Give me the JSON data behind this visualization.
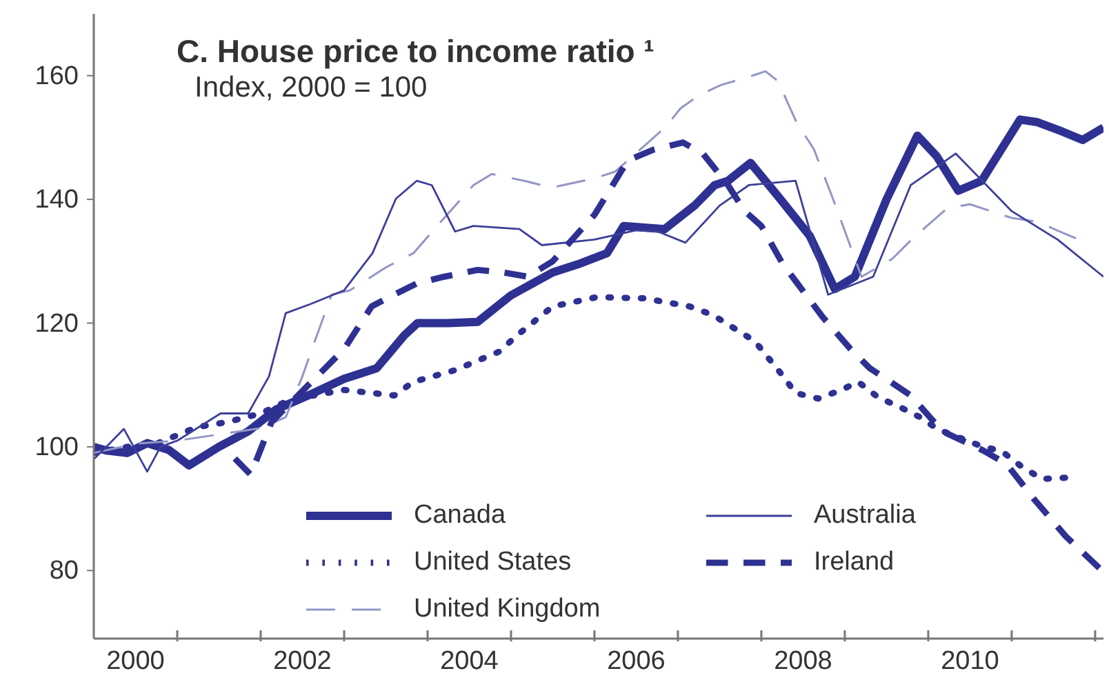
{
  "chart_data": {
    "type": "line",
    "title": "C. House price to income ratio ¹",
    "subtitle": "Index, 2000  = 100",
    "series": [
      {
        "name": "Canada",
        "color": "#2e3192",
        "line_style": "solid",
        "x": [
          2000.0,
          2000.15,
          2000.4,
          2000.64,
          2000.9,
          2001.14,
          2001.5,
          2001.85,
          2002.18,
          2002.6,
          2003.0,
          2003.39,
          2003.72,
          2003.88,
          2004.25,
          2004.6,
          2005.0,
          2005.5,
          2005.8,
          2006.15,
          2006.35,
          2006.84,
          2007.2,
          2007.44,
          2007.6,
          2007.87,
          2008.2,
          2008.58,
          2008.88,
          2009.12,
          2009.5,
          2009.87,
          2010.1,
          2010.36,
          2010.64,
          2011.1,
          2011.3,
          2011.6,
          2011.85,
          2012.1
        ],
        "values": [
          100,
          99.4,
          99,
          100.6,
          99.5,
          97,
          100,
          102.5,
          106,
          108.5,
          111,
          112.7,
          118,
          120,
          120,
          120.2,
          124.5,
          128.2,
          129.5,
          131.3,
          135.7,
          135.2,
          139,
          142.3,
          143,
          145.9,
          140.5,
          134.1,
          125.5,
          127.5,
          140,
          150.3,
          147,
          141.4,
          143,
          152.9,
          152.5,
          151,
          149.6,
          151.6
        ]
      },
      {
        "name": "United States",
        "color": "#2e3192",
        "line_style": "dotted",
        "x": [
          2000.0,
          2000.4,
          2000.75,
          2001.24,
          2001.6,
          2002.0,
          2002.35,
          2003.0,
          2003.6,
          2003.83,
          2004.33,
          2004.86,
          2005.07,
          2005.5,
          2006.03,
          2006.6,
          2007.14,
          2007.42,
          2007.92,
          2008.25,
          2008.41,
          2008.68,
          2008.96,
          2009.16,
          2009.4,
          2009.65,
          2009.9,
          2010.12,
          2010.6,
          2010.89,
          2011.1,
          2011.36,
          2011.64
        ],
        "values": [
          99,
          100,
          100.5,
          103.2,
          104,
          105.4,
          107.6,
          109.2,
          108.3,
          110.5,
          112.4,
          115.4,
          118,
          122.7,
          124.2,
          124,
          122.7,
          121.3,
          117.1,
          111.6,
          108.7,
          107.8,
          109.2,
          110.5,
          108,
          106.5,
          104.8,
          102.8,
          100.3,
          99.2,
          97,
          94.8,
          95
        ]
      },
      {
        "name": "United Kingdom",
        "color": "#9296c6",
        "line_style": "dashed",
        "x": [
          2000.0,
          2000.5,
          2001.0,
          2001.5,
          2002.0,
          2002.3,
          2002.5,
          2002.62,
          2002.85,
          2003.07,
          2003.5,
          2003.83,
          2004.2,
          2004.55,
          2004.77,
          2005.16,
          2005.49,
          2006.0,
          2006.25,
          2006.86,
          2007.03,
          2007.26,
          2007.52,
          2007.8,
          2008.05,
          2008.2,
          2008.42,
          2008.63,
          2008.9,
          2009.2,
          2009.57,
          2009.8,
          2010.23,
          2010.5,
          2011.0,
          2011.3,
          2011.77
        ],
        "values": [
          99,
          100.5,
          101,
          102,
          103,
          104.8,
          111.4,
          116,
          124.6,
          125.3,
          129,
          131.3,
          137,
          142.3,
          144.1,
          143,
          141.9,
          143.4,
          144.5,
          151.8,
          154.7,
          156.9,
          158.5,
          159.6,
          160.7,
          159.1,
          152.5,
          148.1,
          138.6,
          127.5,
          130.4,
          133.5,
          138.6,
          139.2,
          137,
          136.4,
          133.7
        ]
      },
      {
        "name": "Australia",
        "color": "#3d3f99",
        "line_style": "solid",
        "x": [
          2000.0,
          2000.15,
          2000.36,
          2000.64,
          2000.8,
          2001.0,
          2001.52,
          2001.85,
          2002.1,
          2002.3,
          2002.6,
          2003.0,
          2003.34,
          2003.62,
          2003.87,
          2004.05,
          2004.33,
          2004.55,
          2005.1,
          2005.37,
          2006.0,
          2006.5,
          2006.76,
          2007.09,
          2007.5,
          2007.85,
          2008.41,
          2008.8,
          2009.34,
          2009.79,
          2010.33,
          2011.0,
          2011.55,
          2012.1
        ],
        "values": [
          98,
          100,
          102.9,
          96,
          100,
          101,
          105.4,
          105.4,
          111.4,
          121.6,
          123.1,
          125.3,
          131.3,
          140.1,
          143,
          142.3,
          134.8,
          135.7,
          135.2,
          132.6,
          133.5,
          135,
          134.8,
          133,
          139,
          142.3,
          143,
          124.6,
          127.5,
          142.3,
          147.4,
          138.1,
          133.5,
          127.5
        ]
      },
      {
        "name": "Ireland",
        "color": "#2e3192",
        "line_style": "dashed",
        "x": [
          2001.69,
          2001.88,
          2002.13,
          2003.0,
          2003.33,
          2003.6,
          2003.87,
          2004.2,
          2004.6,
          2004.9,
          2005.2,
          2005.5,
          2006.0,
          2006.4,
          2006.7,
          2007.06,
          2007.3,
          2007.6,
          2007.8,
          2008.0,
          2008.25,
          2008.41,
          2008.74,
          2009.07,
          2009.3,
          2009.57,
          2009.79,
          2010.17,
          2010.66,
          2010.94,
          2011.27,
          2011.65,
          2012.05
        ],
        "values": [
          98.1,
          95.5,
          104,
          115.8,
          122.7,
          124.6,
          126.4,
          127.5,
          128.6,
          128.2,
          127.5,
          130,
          137.5,
          146.3,
          148,
          149.2,
          147.4,
          142.3,
          138.1,
          135.7,
          129.7,
          126.8,
          120.9,
          115.8,
          112.7,
          110.3,
          108.3,
          102.5,
          99.4,
          97.2,
          91.5,
          85.5,
          80.4
        ]
      }
    ],
    "xlim": [
      2000,
      2012.1
    ],
    "xticks": [
      {
        "value": 2000.5,
        "label": "2000"
      },
      {
        "value": 2001,
        "label": null
      },
      {
        "value": 2002,
        "label": null
      },
      {
        "value": 2002.5,
        "label": "2002"
      },
      {
        "value": 2003,
        "label": null
      },
      {
        "value": 2004,
        "label": null
      },
      {
        "value": 2004.5,
        "label": "2004"
      },
      {
        "value": 2005,
        "label": null
      },
      {
        "value": 2006,
        "label": null
      },
      {
        "value": 2006.5,
        "label": "2006"
      },
      {
        "value": 2007,
        "label": null
      },
      {
        "value": 2008,
        "label": null
      },
      {
        "value": 2008.5,
        "label": "2008"
      },
      {
        "value": 2009,
        "label": null
      },
      {
        "value": 2010,
        "label": null
      },
      {
        "value": 2010.5,
        "label": "2010"
      },
      {
        "value": 2011,
        "label": null
      },
      {
        "value": 2012,
        "label": null
      }
    ],
    "ylim": [
      69,
      170
    ],
    "yticks": [
      80,
      100,
      120,
      140,
      160
    ],
    "grid": false,
    "legend": "bottom"
  }
}
